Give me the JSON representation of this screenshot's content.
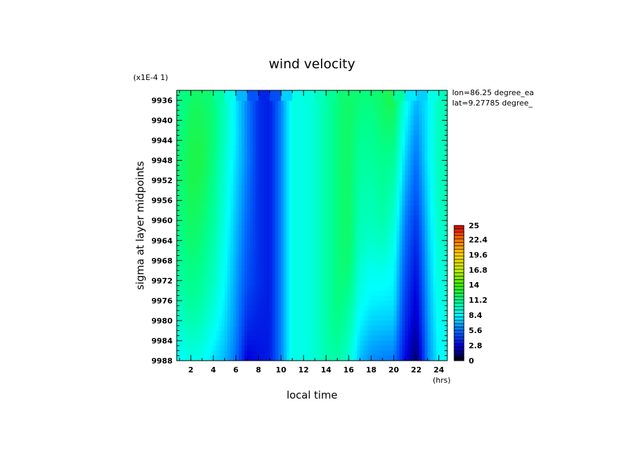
{
  "chart_data": {
    "type": "heatmap",
    "title": "wind velocity",
    "xlabel": "local time",
    "x_unit": "(hrs)",
    "ylabel": "sigma at layer midpoints",
    "y_scale_note": "(x1E-4 1)",
    "annotations": [
      "lon=86.25 degree_ea",
      "lat=9.27785 degree_"
    ],
    "xlim": [
      0.75,
      24.75
    ],
    "ylim": [
      9934,
      9988
    ],
    "x_ticks": [
      2,
      4,
      6,
      8,
      10,
      12,
      14,
      16,
      18,
      20,
      22,
      24
    ],
    "x_tick_labels": [
      "2",
      "4",
      "6",
      "8",
      "10",
      "12",
      "14",
      "16",
      "18",
      "20",
      "22",
      "24"
    ],
    "y_ticks": [
      9936,
      9940,
      9944,
      9948,
      9952,
      9956,
      9960,
      9964,
      9968,
      9972,
      9976,
      9980,
      9984,
      9988
    ],
    "y_tick_labels": [
      "9936",
      "9940",
      "9944",
      "9948",
      "9952",
      "9956",
      "9960",
      "9964",
      "9968",
      "9972",
      "9976",
      "9980",
      "9984",
      "9988"
    ],
    "colorbar": {
      "min": 0,
      "max": 25,
      "ticks": [
        0,
        2.8,
        5.6,
        8.4,
        11.2,
        14,
        16.8,
        19.6,
        22.4,
        25
      ],
      "tick_labels": [
        "0",
        "2.8",
        "5.6",
        "8.4",
        "11.2",
        "14",
        "16.8",
        "19.6",
        "22.4",
        "25"
      ]
    },
    "x": [
      1,
      2,
      3,
      4,
      5,
      6,
      7,
      8,
      9,
      10,
      11,
      12,
      13,
      14,
      15,
      16,
      17,
      18,
      19,
      20,
      21,
      22,
      23,
      24
    ],
    "y": [
      9936,
      9940,
      9944,
      9948,
      9952,
      9956,
      9960,
      9964,
      9968,
      9972,
      9976,
      9980,
      9984,
      9988
    ],
    "z": [
      [
        11,
        12,
        12,
        11.5,
        10,
        8,
        6,
        4,
        3.5,
        6,
        9,
        9,
        9.5,
        10.5,
        11.5,
        12,
        11.5,
        11.5,
        12,
        12.5,
        9,
        7,
        8,
        10
      ],
      [
        11.2,
        12.2,
        12.2,
        11.6,
        10,
        8,
        6,
        4,
        3.5,
        6,
        9,
        9,
        9.5,
        10.5,
        11.5,
        12,
        11.3,
        11.2,
        11.8,
        12,
        8.5,
        6.5,
        8,
        10
      ],
      [
        11.4,
        12.4,
        12.4,
        11.6,
        9.8,
        8,
        6,
        4,
        3.5,
        6,
        9,
        9,
        9.5,
        10.5,
        11.5,
        12,
        11,
        11,
        11.5,
        11.5,
        8,
        6,
        8,
        10
      ],
      [
        11.5,
        12.5,
        12.5,
        11.4,
        9.6,
        7.8,
        6,
        4,
        3.5,
        6,
        9,
        9,
        9.5,
        10.5,
        11.5,
        12,
        10.8,
        10.8,
        11.2,
        11,
        7.5,
        5.6,
        8,
        10
      ],
      [
        11.5,
        12.5,
        12.3,
        11.2,
        9.4,
        7.6,
        5.8,
        4,
        3.5,
        6,
        9,
        9,
        9.5,
        10.5,
        11.5,
        12,
        10.6,
        10.5,
        11,
        10.5,
        7,
        5.2,
        7.8,
        10
      ],
      [
        11.4,
        12.3,
        12,
        11,
        9.2,
        7.4,
        5.6,
        4,
        3.5,
        6,
        9,
        9,
        9.5,
        10.5,
        11.5,
        12,
        10.4,
        10.2,
        10.8,
        10,
        6.5,
        4.8,
        7.6,
        10
      ],
      [
        11.3,
        12.1,
        11.8,
        10.8,
        9,
        7.2,
        5.4,
        4,
        3.5,
        6,
        9,
        9,
        9.5,
        10.5,
        11.5,
        12,
        10.2,
        10,
        10.5,
        9.5,
        6,
        4.2,
        7.4,
        9.8
      ],
      [
        11.1,
        11.9,
        11.5,
        10.5,
        8.8,
        7,
        5.2,
        4,
        3.5,
        6,
        9,
        9,
        9.5,
        10.5,
        11.5,
        12,
        10,
        9.6,
        10,
        9,
        5.6,
        3.8,
        7.2,
        9.6
      ],
      [
        10.9,
        11.6,
        11.2,
        10.2,
        8.6,
        6.8,
        5,
        4,
        3.5,
        6,
        9,
        9,
        9.5,
        10.5,
        11.5,
        11.8,
        9.6,
        9,
        9.3,
        8.6,
        5.2,
        3.4,
        7,
        9.4
      ],
      [
        10.6,
        11.3,
        10.9,
        9.9,
        8.4,
        6.6,
        4.8,
        4,
        3.5,
        6,
        9,
        9,
        9.5,
        10.5,
        11.5,
        11.5,
        9.2,
        8.5,
        8.6,
        8.3,
        4.8,
        3,
        6.8,
        9.2
      ],
      [
        10.2,
        10.9,
        10.5,
        9.5,
        8.1,
        6.4,
        4.4,
        3.8,
        3.5,
        6,
        9,
        9,
        9.5,
        10.5,
        11.5,
        11,
        8.8,
        8.2,
        8.1,
        8,
        4.4,
        2.6,
        6.6,
        9
      ],
      [
        9.7,
        10.4,
        10,
        9,
        7.8,
        6.2,
        4,
        3.6,
        3.5,
        6,
        9,
        9,
        9.5,
        10.5,
        11.3,
        10.5,
        8.3,
        7.6,
        7.5,
        7.4,
        4,
        2.2,
        6.4,
        8.8
      ],
      [
        9.1,
        9.7,
        9.4,
        8.4,
        7.4,
        5.9,
        3.4,
        3.4,
        3.5,
        6,
        9,
        9,
        9.5,
        10.4,
        11,
        10,
        7.7,
        6.9,
        6.7,
        6.6,
        3.5,
        1.6,
        6.2,
        8.6
      ],
      [
        8.5,
        9,
        8.8,
        7.8,
        7,
        5.6,
        2.6,
        3.2,
        3.5,
        6,
        9,
        9,
        9.5,
        10.3,
        10.6,
        9.5,
        7.1,
        6.2,
        5.9,
        5.8,
        3,
        1,
        6,
        8.4
      ]
    ]
  }
}
